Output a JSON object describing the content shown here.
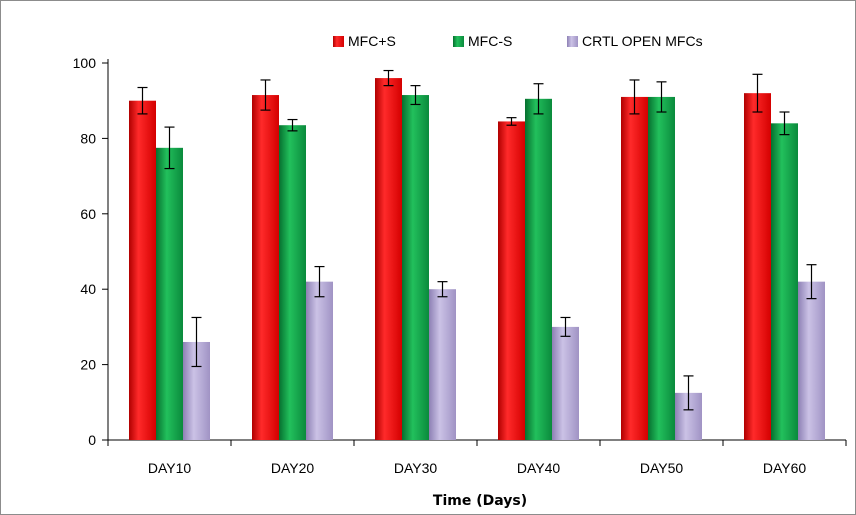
{
  "chart_data": {
    "type": "bar",
    "title": "",
    "xlabel": "Time (Days)",
    "ylabel": "",
    "ylim": [
      0,
      100
    ],
    "yticks": [
      0,
      20,
      40,
      60,
      80,
      100
    ],
    "grid": false,
    "legend_position": "top",
    "categories": [
      "DAY10",
      "DAY20",
      "DAY30",
      "DAY40",
      "DAY50",
      "DAY60"
    ],
    "series": [
      {
        "name": "MFC+S",
        "color": "#ff1111",
        "values": [
          90,
          91.5,
          96,
          84.5,
          91,
          92
        ],
        "error": [
          3.5,
          4,
          2,
          1,
          4.5,
          5
        ]
      },
      {
        "name": "MFC-S",
        "color": "#0fa84a",
        "values": [
          77.5,
          83.5,
          91.5,
          90.5,
          91,
          84
        ],
        "error": [
          5.5,
          1.5,
          2.5,
          4,
          4,
          3
        ]
      },
      {
        "name": "CRTL OPEN MFCs",
        "color": "#b3a6d4",
        "values": [
          26,
          42,
          40,
          30,
          12.5,
          42
        ],
        "error": [
          6.5,
          4,
          2,
          2.5,
          4.5,
          4.5
        ]
      }
    ]
  }
}
